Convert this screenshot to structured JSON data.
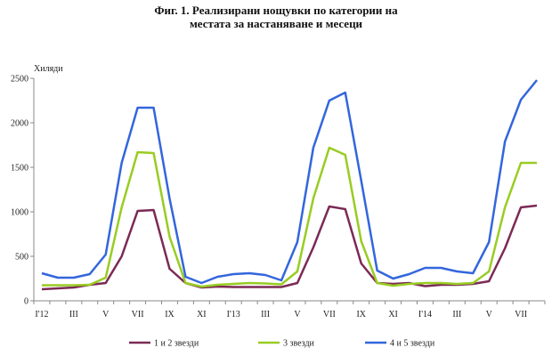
{
  "chart_data": {
    "type": "line",
    "title_line1": "Фиг. 1. Реализирани нощувки по категории на",
    "title_line2": "местата за настаняване и месеци",
    "y_unit": "Хиляди",
    "ylim": [
      0,
      2500
    ],
    "y_ticks": [
      "0",
      "500",
      "1000",
      "1500",
      "2000",
      "2500"
    ],
    "x_tick_labels": [
      "I'12",
      "III",
      "V",
      "VII",
      "IX",
      "XI",
      "I'13",
      "III",
      "V",
      "VII",
      "IX",
      "XI",
      "I'14",
      "III",
      "V",
      "VII"
    ],
    "grid": false,
    "legend_position": "bottom",
    "x": [
      "I'12",
      "II",
      "III",
      "IV",
      "V",
      "VI",
      "VII",
      "VIII",
      "IX",
      "X",
      "XI",
      "XII",
      "I'13",
      "II",
      "III",
      "IV",
      "V",
      "VI",
      "VII",
      "VIII",
      "IX",
      "X",
      "XI",
      "XII",
      "I'14",
      "II",
      "III",
      "IV",
      "V",
      "VI",
      "VII",
      "VIII"
    ],
    "series": [
      {
        "name": "1 и 2 звезди",
        "color": "#7b2a55",
        "values": [
          130,
          140,
          150,
          180,
          200,
          500,
          1010,
          1020,
          360,
          200,
          150,
          160,
          155,
          155,
          155,
          155,
          200,
          600,
          1060,
          1030,
          420,
          200,
          190,
          200,
          165,
          180,
          180,
          190,
          220,
          590,
          1050,
          1070
        ]
      },
      {
        "name": "3 звезди",
        "color": "#99cc22",
        "values": [
          175,
          175,
          175,
          180,
          260,
          1050,
          1670,
          1660,
          720,
          200,
          160,
          180,
          190,
          200,
          195,
          185,
          330,
          1150,
          1720,
          1640,
          670,
          200,
          170,
          190,
          200,
          200,
          190,
          200,
          330,
          1050,
          1550,
          1550
        ]
      },
      {
        "name": "4 и 5 звезди",
        "color": "#3366dd",
        "values": [
          310,
          260,
          260,
          300,
          520,
          1550,
          2170,
          2170,
          1150,
          270,
          200,
          270,
          300,
          310,
          290,
          230,
          660,
          1720,
          2250,
          2340,
          1350,
          340,
          250,
          300,
          370,
          370,
          330,
          310,
          660,
          1790,
          2260,
          2480
        ]
      }
    ]
  }
}
